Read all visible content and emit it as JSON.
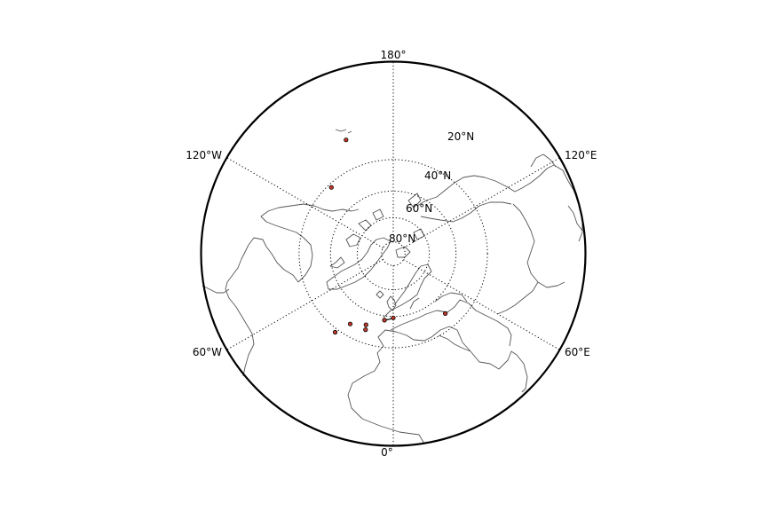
{
  "map": {
    "projection": "north-polar-stereographic",
    "boundinglat": -20,
    "center_lon": 0,
    "parallels": [
      80,
      60,
      40,
      20
    ],
    "parallel_labels": [
      "80°N",
      "60°N",
      "40°N",
      "20°N"
    ],
    "meridian_labels": {
      "top": "180°",
      "bottom": "0°",
      "upper_left": "120°W",
      "lower_left": "60°W",
      "upper_right": "120°E",
      "lower_right": "60°E"
    },
    "marker_color": "#c0392b",
    "coast_color": "#555555"
  },
  "points": [
    {
      "lon": -157.5,
      "lat": 5
    },
    {
      "lon": -137,
      "lat": 22
    },
    {
      "lon": -36.5,
      "lat": 18
    },
    {
      "lon": -31.5,
      "lat": 27
    },
    {
      "lon": -21,
      "lat": 31
    },
    {
      "lon": -20,
      "lat": 28
    },
    {
      "lon": 0,
      "lat": 39
    },
    {
      "lon": -7.5,
      "lat": 37
    },
    {
      "lon": 41,
      "lat": 29
    }
  ],
  "track": [
    {
      "lon": -7.5,
      "lat": 37
    },
    {
      "lon": -3,
      "lat": 38
    },
    {
      "lon": 0,
      "lat": 39
    }
  ]
}
